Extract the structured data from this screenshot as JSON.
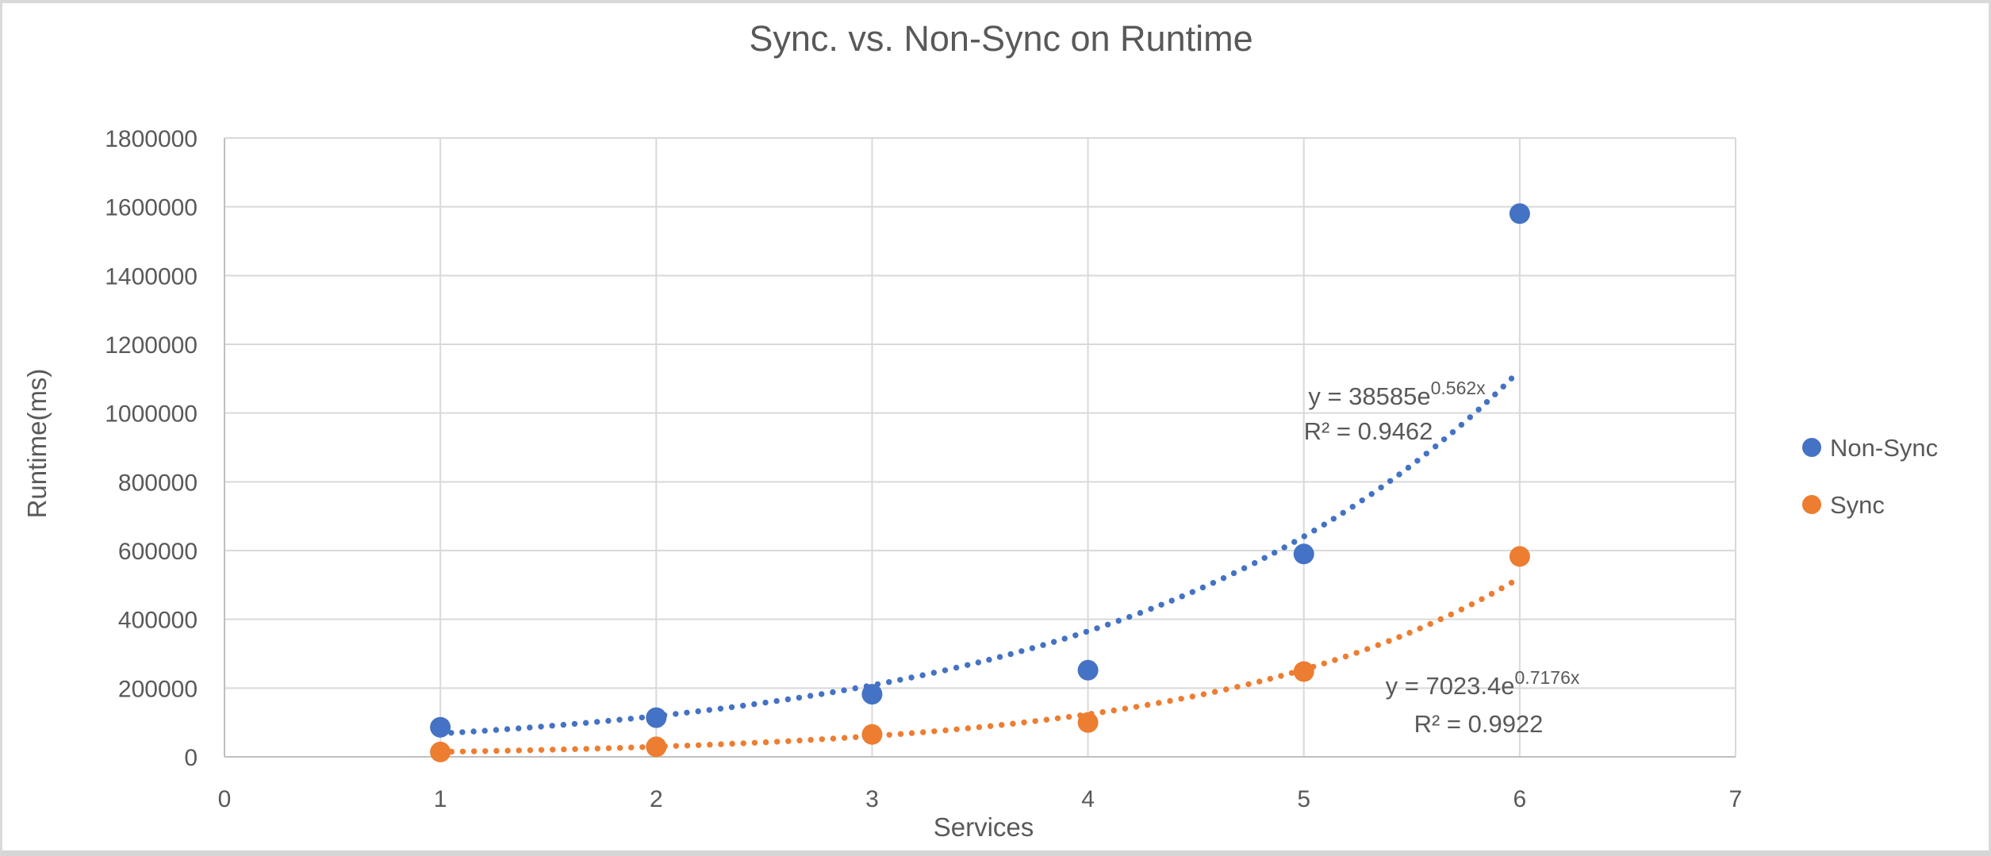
{
  "chart_data": {
    "type": "scatter",
    "title": "Sync. vs. Non-Sync on  Runtime",
    "xlabel": "Services",
    "ylabel": "Runtime(ms)",
    "xlim": [
      0,
      7
    ],
    "ylim": [
      0,
      1800000
    ],
    "x_ticks": [
      0,
      1,
      2,
      3,
      4,
      5,
      6,
      7
    ],
    "y_ticks": [
      0,
      200000,
      400000,
      600000,
      800000,
      1000000,
      1200000,
      1400000,
      1600000,
      1800000
    ],
    "grid": true,
    "legend_position": "right",
    "series": [
      {
        "name": "Non-Sync",
        "color": "#4472C4",
        "points": [
          [
            1,
            86000
          ],
          [
            2,
            114000
          ],
          [
            3,
            182000
          ],
          [
            4,
            252000
          ],
          [
            5,
            590000
          ],
          [
            6,
            1580000
          ]
        ],
        "trendline": {
          "type": "exponential",
          "a": 38585,
          "b": 0.562,
          "x_start": 1.05,
          "x_end": 5.98,
          "equation": "y = 38585e^(0.562x)",
          "equation_base": "y = 38585e",
          "equation_exponent": "0.562x",
          "r2_label": "R² = 0.9462"
        }
      },
      {
        "name": "Sync",
        "color": "#ED7D31",
        "points": [
          [
            1,
            14000
          ],
          [
            2,
            29000
          ],
          [
            3,
            65000
          ],
          [
            4,
            100000
          ],
          [
            5,
            248000
          ],
          [
            6,
            583000
          ]
        ],
        "trendline": {
          "type": "exponential",
          "a": 7023.4,
          "b": 0.7176,
          "x_start": 1.0,
          "x_end": 6.0,
          "equation": "y = 7023.4e^(0.7176x)",
          "equation_base": "y = 7023.4e",
          "equation_exponent": "0.7176x",
          "r2_label": "R² = 0.9922"
        }
      }
    ]
  },
  "colors": {
    "non_sync": "#4472C4",
    "sync": "#ED7D31",
    "gridline": "#D9D9D9",
    "axis_line": "#BFBFBF",
    "text": "#595959",
    "frame_border": "#D9D9D9"
  }
}
